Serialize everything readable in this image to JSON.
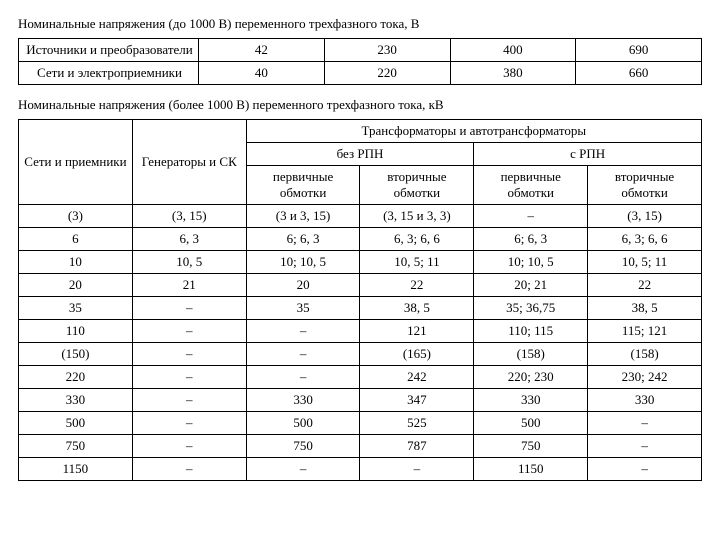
{
  "heading1": "Номинальные напряжения (до 1000 В) переменного трехфазного тока, В",
  "table1": {
    "type": "table",
    "rows": [
      {
        "label": "Источники и преобразователи",
        "v": [
          "42",
          "230",
          "400",
          "690"
        ]
      },
      {
        "label": "Сети и электроприемники",
        "v": [
          "40",
          "220",
          "380",
          "660"
        ]
      }
    ]
  },
  "heading2": "Номинальные напряжения (более 1000 В) переменного трехфазного тока, кВ",
  "table2": {
    "type": "table",
    "header": {
      "col1": "Сети и приемники",
      "col2": "Генераторы и СК",
      "group_top": "Трансформаторы и автотрансформаторы",
      "group_left": "без РПН",
      "group_right": "с РПН",
      "sub_primary": "первичные обмотки",
      "sub_secondary": "вторичные обмотки"
    },
    "rows": [
      [
        "(3)",
        "(3, 15)",
        "(3 и 3, 15)",
        "(3, 15 и 3, 3)",
        "–",
        "(3, 15)"
      ],
      [
        "6",
        "6, 3",
        "6; 6, 3",
        "6, 3; 6, 6",
        "6; 6, 3",
        "6, 3; 6, 6"
      ],
      [
        "10",
        "10, 5",
        "10; 10, 5",
        "10, 5; 11",
        "10; 10, 5",
        "10, 5; 11"
      ],
      [
        "20",
        "21",
        "20",
        "22",
        "20; 21",
        "22"
      ],
      [
        "35",
        "–",
        "35",
        "38, 5",
        "35; 36,75",
        "38, 5"
      ],
      [
        "110",
        "–",
        "–",
        "121",
        "110; 115",
        "115; 121"
      ],
      [
        "(150)",
        "–",
        "–",
        "(165)",
        "(158)",
        "(158)"
      ],
      [
        "220",
        "–",
        "–",
        "242",
        "220; 230",
        "230; 242"
      ],
      [
        "330",
        "–",
        "330",
        "347",
        "330",
        "330"
      ],
      [
        "500",
        "–",
        "500",
        "525",
        "500",
        "–"
      ],
      [
        "750",
        "–",
        "750",
        "787",
        "750",
        "–"
      ],
      [
        "1150",
        "–",
        "–",
        "–",
        "1150",
        "–"
      ]
    ]
  }
}
